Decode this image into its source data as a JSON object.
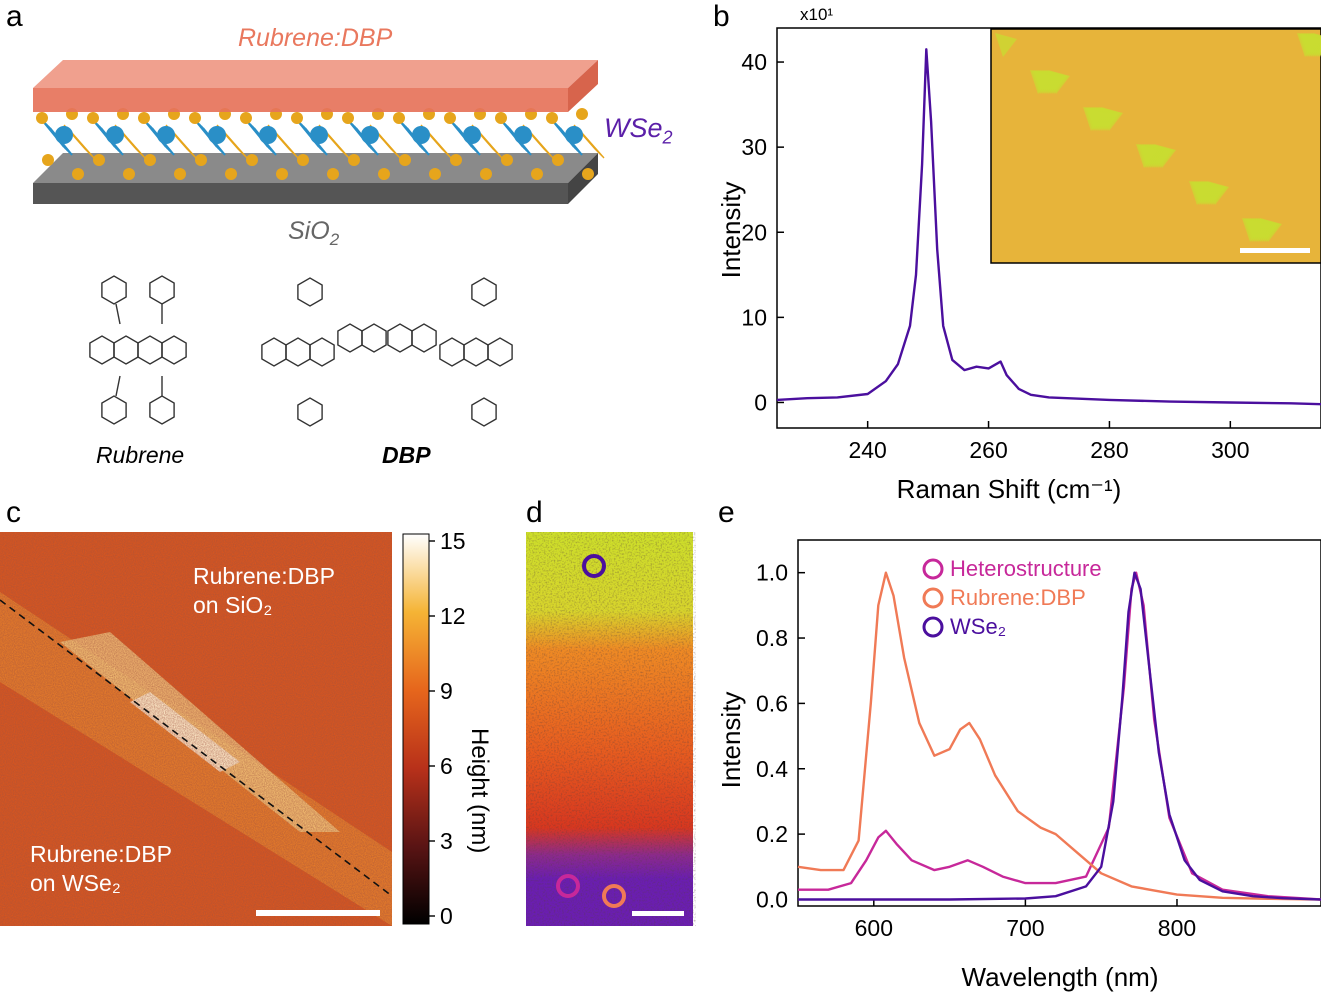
{
  "panels": {
    "a": {
      "label": "a",
      "top_layer": "Rubrene:DBP",
      "middle_layer": "WSe2",
      "substrate": "SiO2",
      "molecule_1": "Rubrene",
      "molecule_2": "DBP",
      "colors": {
        "top_layer": "#e9785e",
        "wse2": "#5b1fa8",
        "substrate": "#666666",
        "metal": "#2a8fc7",
        "chalcogen": "#e6a51c"
      }
    },
    "b": {
      "label": "b",
      "exponent_label": "x10¹",
      "xlabel": "Raman Shift (cm⁻¹)",
      "ylabel": "Intensity",
      "xticks": [
        "240",
        "260",
        "280",
        "300"
      ],
      "yticks": [
        "0",
        "10",
        "20",
        "30",
        "40"
      ]
    },
    "c": {
      "label": "c",
      "annotation_top": "Rubrene:DBP",
      "annotation_top_2": "on SiO₂",
      "annotation_bottom": "Rubrene:DBP",
      "annotation_bottom_2": "on WSe₂",
      "colorbar_label": "Height (nm)",
      "colorbar_ticks": [
        "0",
        "3",
        "6",
        "9",
        "12",
        "15"
      ]
    },
    "d": {
      "label": "d"
    },
    "e": {
      "label": "e",
      "xlabel": "Wavelength (nm)",
      "ylabel": "Intensity",
      "xticks": [
        "600",
        "700",
        "800"
      ],
      "yticks": [
        "0.0",
        "0.2",
        "0.4",
        "0.6",
        "0.8",
        "1.0"
      ],
      "legend": [
        "Heterostructure",
        "Rubrene:DBP",
        "WSe₂"
      ]
    }
  },
  "chart_data": [
    {
      "type": "line",
      "panel": "b",
      "xlabel": "Raman Shift (cm⁻¹)",
      "ylabel": "Intensity",
      "xlim": [
        225,
        315
      ],
      "ylim": [
        -3,
        44
      ],
      "y_multiplier": "x10¹",
      "series": [
        {
          "color": "#4b0f9e",
          "x": [
            225,
            230,
            235,
            240,
            243,
            245,
            247,
            248,
            249,
            249.7,
            250.5,
            251.5,
            252.5,
            254,
            256,
            258,
            260,
            262,
            263,
            265,
            267,
            270,
            280,
            290,
            300,
            310,
            315
          ],
          "y": [
            0.3,
            0.5,
            0.6,
            1.0,
            2.5,
            4.5,
            9,
            15,
            28,
            41.5,
            33,
            18,
            9,
            5,
            3.8,
            4.2,
            4.0,
            4.8,
            3.2,
            1.6,
            0.9,
            0.6,
            0.3,
            0.1,
            0.0,
            -0.1,
            -0.2
          ]
        }
      ]
    },
    {
      "type": "line",
      "panel": "e",
      "xlabel": "Wavelength (nm)",
      "ylabel": "Intensity",
      "xlim": [
        550,
        895
      ],
      "ylim": [
        -0.02,
        1.1
      ],
      "legend_position": "top-center",
      "series": [
        {
          "name": "Heterostructure",
          "color": "#c7289a",
          "x": [
            550,
            570,
            585,
            595,
            603,
            608,
            615,
            625,
            640,
            650,
            662,
            672,
            685,
            700,
            720,
            740,
            755,
            765,
            770,
            773,
            778,
            785,
            795,
            810,
            830,
            860,
            895
          ],
          "y": [
            0.03,
            0.03,
            0.05,
            0.12,
            0.19,
            0.21,
            0.17,
            0.12,
            0.09,
            0.1,
            0.12,
            0.1,
            0.07,
            0.05,
            0.05,
            0.07,
            0.22,
            0.65,
            0.95,
            1.0,
            0.9,
            0.55,
            0.25,
            0.08,
            0.03,
            0.01,
            0.0
          ]
        },
        {
          "name": "Rubrene:DBP",
          "color": "#f07a56",
          "x": [
            550,
            565,
            580,
            590,
            598,
            603,
            608,
            613,
            620,
            630,
            640,
            650,
            657,
            663,
            670,
            680,
            695,
            710,
            720,
            735,
            750,
            770,
            800,
            830,
            860,
            895
          ],
          "y": [
            0.1,
            0.09,
            0.09,
            0.18,
            0.6,
            0.9,
            1.0,
            0.93,
            0.74,
            0.54,
            0.44,
            0.46,
            0.52,
            0.54,
            0.49,
            0.38,
            0.27,
            0.22,
            0.2,
            0.14,
            0.08,
            0.04,
            0.015,
            0.005,
            0.002,
            0.0
          ]
        },
        {
          "name": "WSe₂",
          "color": "#4b0f9e",
          "x": [
            550,
            600,
            650,
            700,
            720,
            740,
            750,
            758,
            764,
            768,
            772,
            776,
            781,
            788,
            795,
            805,
            815,
            830,
            850,
            870,
            895
          ],
          "y": [
            0.0,
            0.0,
            0.0,
            0.003,
            0.01,
            0.04,
            0.1,
            0.3,
            0.62,
            0.88,
            1.0,
            0.95,
            0.74,
            0.45,
            0.26,
            0.12,
            0.06,
            0.025,
            0.01,
            0.004,
            0.0
          ]
        }
      ]
    }
  ]
}
